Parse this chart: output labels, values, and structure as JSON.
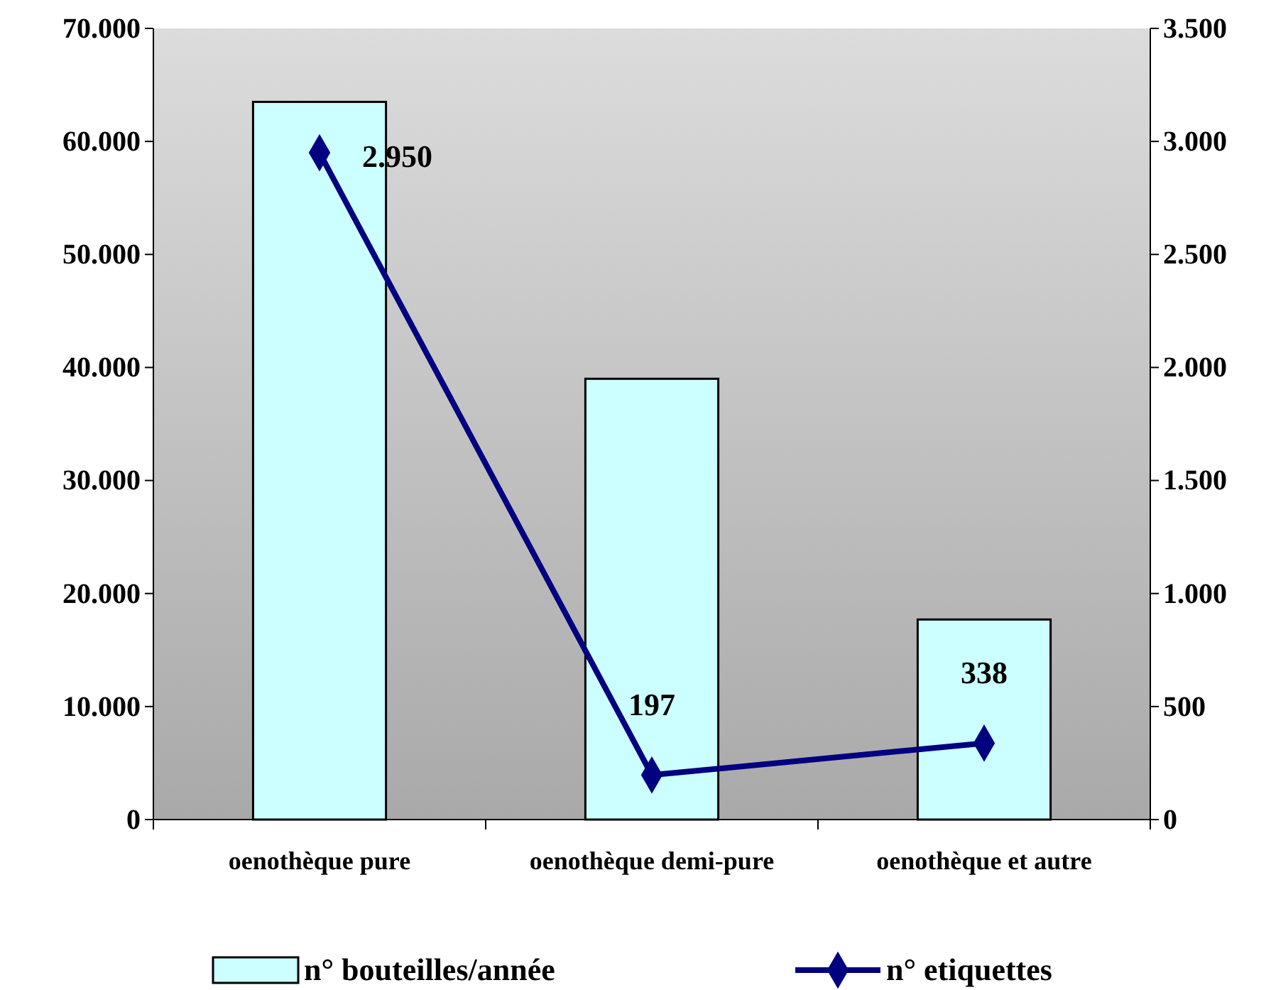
{
  "chart_data": {
    "type": "bar",
    "categories": [
      "oenothèque pure",
      "oenothèque demi-pure",
      "oenothèque et autre"
    ],
    "series": [
      {
        "name": "n° bouteilles/année",
        "color": "#ccffff",
        "values": [
          63500,
          39000,
          17700
        ]
      },
      {
        "name": "n° etiquettes",
        "type": "line",
        "axis": "y2",
        "color": "#000080",
        "values": [
          2950,
          197,
          338
        ],
        "value_labels": [
          "2.950",
          "197",
          "338"
        ]
      }
    ],
    "ylim": [
      0,
      70000
    ],
    "yticks": [
      {
        "value": 0,
        "label": "0"
      },
      {
        "value": 10000,
        "label": "10.000"
      },
      {
        "value": 20000,
        "label": "20.000"
      },
      {
        "value": 30000,
        "label": "30.000"
      },
      {
        "value": 40000,
        "label": "40.000"
      },
      {
        "value": 50000,
        "label": "50.000"
      },
      {
        "value": 60000,
        "label": "60.000"
      },
      {
        "value": 70000,
        "label": "70.000"
      }
    ],
    "y2lim": [
      0,
      3500
    ],
    "y2ticks": [
      0,
      500,
      {
        "value": 1000,
        "label": "1.000"
      },
      {
        "value": 1500,
        "label": "1.500"
      },
      {
        "value": 2000,
        "label": "2.000"
      },
      {
        "value": 2500,
        "label": "2.500"
      },
      {
        "value": 3000,
        "label": "3.000"
      },
      {
        "value": 3500,
        "label": "3.500"
      }
    ],
    "marker": "diamond",
    "legend": "bottom",
    "grid": false
  }
}
